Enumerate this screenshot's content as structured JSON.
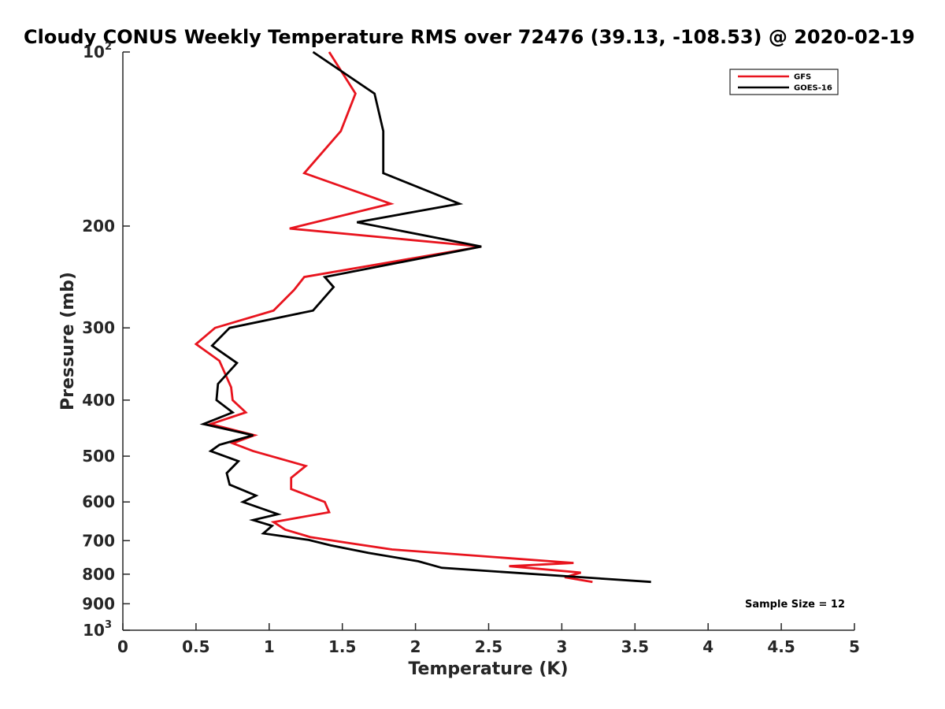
{
  "chart_data": {
    "type": "line",
    "title": "Cloudy CONUS Weekly Temperature RMS over 72476 (39.13, -108.53) @ 2020-02-19",
    "xlabel": "Temperature (K)",
    "ylabel": "Pressure (mb)",
    "xlim": [
      0,
      5
    ],
    "ylim": [
      100,
      1000
    ],
    "y_scale": "log",
    "y_reversed": true,
    "grid": false,
    "legend_position": "top-right",
    "x_ticks": [
      0,
      0.5,
      1,
      1.5,
      2,
      2.5,
      3,
      3.5,
      4,
      4.5,
      5
    ],
    "x_tick_labels": [
      "0",
      "0.5",
      "1",
      "1.5",
      "2",
      "2.5",
      "3",
      "3.5",
      "4",
      "4.5",
      "5"
    ],
    "y_ticks": [
      100,
      200,
      300,
      400,
      500,
      600,
      700,
      800,
      900,
      1000
    ],
    "y_tick_labels": [
      {
        "base": "10",
        "exp": "2"
      },
      {
        "base": "200",
        "exp": ""
      },
      {
        "base": "300",
        "exp": ""
      },
      {
        "base": "400",
        "exp": ""
      },
      {
        "base": "500",
        "exp": ""
      },
      {
        "base": "600",
        "exp": ""
      },
      {
        "base": "700",
        "exp": ""
      },
      {
        "base": "800",
        "exp": ""
      },
      {
        "base": "900",
        "exp": ""
      },
      {
        "base": "10",
        "exp": "3"
      }
    ],
    "annotation": "Sample Size = 12",
    "series": [
      {
        "name": "GFS",
        "color": "#e8141e",
        "x": [
          1.41,
          1.59,
          1.49,
          1.24,
          1.83,
          1.14,
          2.45,
          1.24,
          1.17,
          1.03,
          0.63,
          0.5,
          0.66,
          0.74,
          0.75,
          0.84,
          0.6,
          0.9,
          0.75,
          0.89,
          1.25,
          1.15,
          1.15,
          1.38,
          1.41,
          1.03,
          1.11,
          1.28,
          1.52,
          1.84,
          3.08,
          2.64,
          3.13,
          3.02,
          3.21
        ],
        "y": [
          100,
          118,
          137,
          162,
          183,
          202,
          217,
          245,
          258,
          280,
          300,
          320,
          342,
          380,
          400,
          420,
          440,
          460,
          475,
          490,
          520,
          545,
          570,
          600,
          625,
          650,
          670,
          690,
          705,
          725,
          765,
          775,
          795,
          810,
          825
        ]
      },
      {
        "name": "GOES-16",
        "color": "#000000",
        "x": [
          1.3,
          1.72,
          1.78,
          1.78,
          2.3,
          1.6,
          2.45,
          1.38,
          1.44,
          1.3,
          0.73,
          0.61,
          0.78,
          0.65,
          0.64,
          0.75,
          0.55,
          0.89,
          0.66,
          0.6,
          0.79,
          0.71,
          0.73,
          0.91,
          0.82,
          1.06,
          0.89,
          1.02,
          0.96,
          1.27,
          1.42,
          1.68,
          2.02,
          2.18,
          3.61
        ],
        "y": [
          100,
          118,
          137,
          162,
          183,
          197,
          217,
          245,
          255,
          280,
          300,
          322,
          345,
          375,
          400,
          420,
          440,
          460,
          478,
          490,
          510,
          535,
          560,
          585,
          600,
          630,
          645,
          660,
          680,
          698,
          713,
          735,
          760,
          780,
          825
        ]
      }
    ]
  }
}
